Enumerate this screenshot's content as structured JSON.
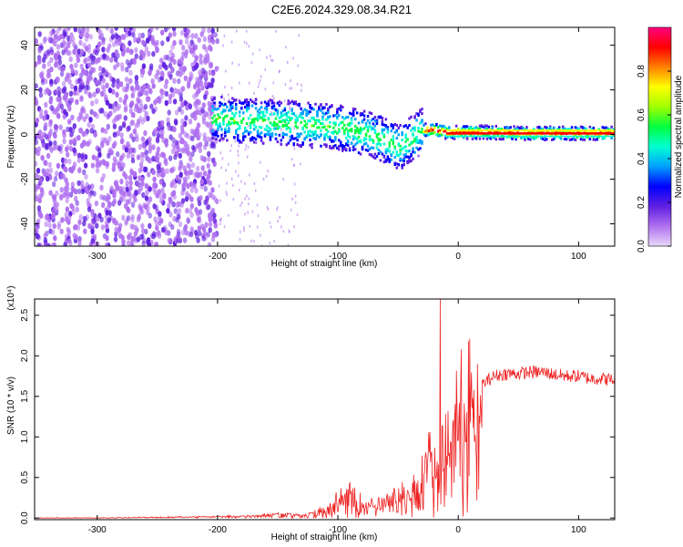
{
  "title": "C2E6.2024.329.08.34.R21",
  "chart_data": [
    {
      "type": "heatmap",
      "xlabel": "Height of straight line (km)",
      "ylabel": "Frequency (Hz)",
      "xlim": [
        -352,
        130
      ],
      "ylim": [
        -50,
        48
      ],
      "x_ticks": [
        -300,
        -200,
        -100,
        0,
        100
      ],
      "y_ticks": [
        -40,
        -20,
        0,
        20,
        40
      ],
      "colorbar": {
        "label": "Normalized spectral amplitude",
        "range": [
          0.0,
          1.0
        ],
        "ticks": [
          "0.0",
          "0.2",
          "0.4",
          "0.6",
          "0.8"
        ],
        "colors": [
          "#e8d8f8",
          "#b070f0",
          "#6020e0",
          "#0000ff",
          "#00a0ff",
          "#00ffd0",
          "#00ff40",
          "#a0ff00",
          "#ffff00",
          "#ff8000",
          "#ff0000",
          "#ff0080"
        ]
      },
      "ridge": {
        "x": [
          -200,
          -180,
          -160,
          -140,
          -120,
          -100,
          -80,
          -60,
          -50,
          -40,
          -30,
          -20,
          -10,
          0,
          20,
          50,
          100,
          130
        ],
        "y": [
          7,
          6,
          6,
          5,
          4,
          3,
          1,
          -3,
          -6,
          -2,
          2,
          2,
          1,
          1,
          1,
          0.5,
          0.5,
          0.5
        ]
      }
    },
    {
      "type": "line",
      "xlabel": "Height of straight line (km)",
      "ylabel": "SNR (10 * v/v)",
      "y_multiplier": "(x10⁴)",
      "xlim": [
        -352,
        130
      ],
      "ylim": [
        -0.02,
        2.7
      ],
      "x_ticks": [
        -300,
        -200,
        -100,
        0,
        100
      ],
      "y_ticks": [
        "0.0",
        "0.5",
        "1.0",
        "1.5",
        "2.0",
        "2.5"
      ],
      "series": [
        {
          "color": "#ee2222",
          "x": [
            -352,
            -300,
            -250,
            -200,
            -170,
            -150,
            -130,
            -110,
            -100,
            -90,
            -80,
            -70,
            -60,
            -50,
            -40,
            -30,
            -25,
            -20,
            -15,
            -10,
            -5,
            0,
            10,
            20,
            30,
            40,
            50,
            60,
            70,
            80,
            90,
            100,
            110,
            120,
            130
          ],
          "y": [
            0.0,
            0.0,
            0.01,
            0.02,
            0.03,
            0.06,
            0.04,
            0.1,
            0.25,
            0.3,
            0.2,
            0.18,
            0.2,
            0.3,
            0.35,
            0.55,
            0.8,
            0.9,
            0.75,
            0.9,
            1.2,
            1.45,
            1.55,
            1.65,
            1.75,
            1.78,
            1.78,
            1.8,
            1.8,
            1.77,
            1.75,
            1.75,
            1.72,
            1.72,
            1.7
          ]
        }
      ],
      "spike": {
        "x": -15,
        "y": 2.7
      }
    }
  ]
}
